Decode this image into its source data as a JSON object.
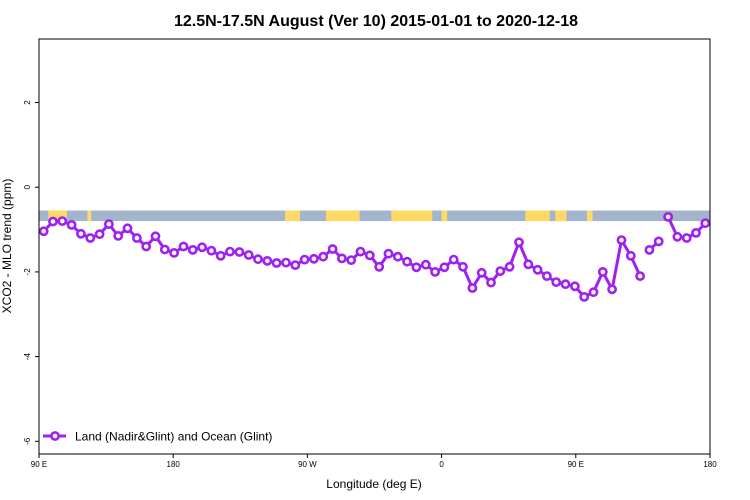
{
  "chart_data": {
    "type": "line",
    "title": "12.5N-17.5N August (Ver 10)   2015-01-01 to 2020-12-18",
    "xlabel": "Longitude (deg E)",
    "ylabel": "XCO2 - MLO trend (ppm)",
    "xlim": [
      90,
      450
    ],
    "ylim": [
      -6.3,
      3.5
    ],
    "x_ticks": [
      90,
      162,
      234,
      306,
      378,
      450
    ],
    "x_tick_labels": [
      "90 E",
      "180",
      "90 W",
      "0",
      "90 E",
      "180"
    ],
    "y_ticks": [
      -6,
      -4,
      -2,
      0,
      2
    ],
    "y_tick_labels": [
      "-6",
      "-4",
      "-2",
      "0",
      "2"
    ],
    "grid": false,
    "legend_position": "bottom-left",
    "colors": {
      "series": "#a020f0",
      "ocean": "#a2b5cd",
      "land": "#ffd966"
    },
    "land_band": {
      "y_top": -0.55,
      "y_bottom": -0.8,
      "land_segments": [
        [
          95,
          105
        ],
        [
          116,
          118
        ],
        [
          222,
          230
        ],
        [
          244,
          262
        ],
        [
          279,
          301
        ],
        [
          306,
          309
        ],
        [
          351,
          364
        ],
        [
          367,
          373
        ],
        [
          384,
          387
        ]
      ]
    },
    "series": [
      {
        "name": "Land (Nadir&Glint) and Ocean (Glint)",
        "segments": [
          {
            "x": [
              92.5,
              97.5,
              102.5,
              107.5,
              112.5,
              117.5,
              122.5,
              127.5,
              132.5,
              137.5,
              142.5,
              147.5,
              152.5,
              157.5,
              162.5,
              167.5,
              172.5,
              177.5,
              182.5,
              187.5,
              192.5,
              197.5,
              202.5,
              207.5,
              212.5,
              217.5,
              222.5,
              227.5,
              232.5,
              237.5,
              242.5,
              247.5,
              252.5,
              257.5,
              262.5,
              267.5,
              272.5,
              277.5,
              282.5,
              287.5,
              292.5,
              297.5,
              302.5,
              307.5,
              312.5,
              317.5,
              322.5,
              327.5,
              332.5,
              337.5,
              342.5,
              347.5,
              352.5,
              357.5,
              362.5,
              367.5,
              372.5,
              377.5,
              382.5,
              387.5,
              392.5,
              397.5,
              402.5,
              407.5,
              412.5,
              417.5,
              422.5,
              427.5,
              432.5,
              437.5,
              442.5,
              447.5
            ],
            "y": [
              -1.04,
              -0.81,
              -0.8,
              -0.89,
              -1.1,
              -1.2,
              -1.11,
              -0.87,
              -1.15,
              -0.97,
              -1.2,
              -1.4,
              -1.16,
              -1.47,
              -1.55,
              -1.4,
              -1.48,
              -1.42,
              -1.5,
              -1.62,
              -1.52,
              -1.53,
              -1.6,
              -1.7,
              -1.74,
              -1.79,
              -1.78,
              -1.84,
              -1.71,
              -1.69,
              -1.64,
              -1.46,
              -1.68,
              -1.72,
              -1.52,
              -1.61,
              -1.88,
              -1.57,
              -1.64,
              -1.76,
              -1.89,
              -1.83,
              -2.0,
              -1.89,
              -1.71,
              -1.88,
              -2.38,
              -2.02,
              -2.25,
              -1.98,
              -1.88,
              -1.3,
              -1.82,
              -1.95,
              -2.1,
              -2.24,
              -2.29,
              -2.34,
              -2.59,
              -2.48,
              -2.0,
              -2.41,
              -1.25,
              -1.62,
              -2.1,
              -1.48,
              -1.28,
              -0.7,
              -1.17,
              -1.2,
              -1.08,
              -0.85
            ]
          }
        ]
      }
    ]
  },
  "legend": {
    "entries": [
      "Land (Nadir&Glint) and Ocean (Glint)"
    ]
  }
}
